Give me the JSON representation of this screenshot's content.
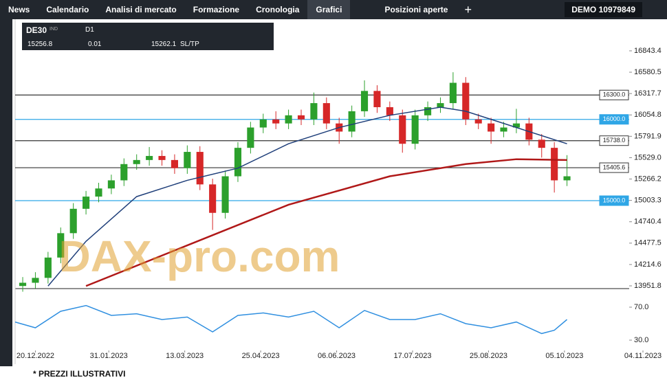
{
  "nav": {
    "items": [
      "News",
      "Calendario",
      "Analisi di mercato",
      "Formazione",
      "Cronologia",
      "Grafici",
      "Posizioni aperte"
    ],
    "account": "DEMO 10979849"
  },
  "toolbar": {
    "symbol": "DE30",
    "symbol_tag": "IND",
    "timeframe": "D1",
    "bid": "15256.8",
    "volume": "0.01",
    "ask": "15262.1",
    "sltp": "SL/TP"
  },
  "watermark": "DAX-pro.com",
  "footnote": "* PREZZI ILLUSTRATIVI",
  "chart_data": {
    "type": "candlestick",
    "x": [
      -5,
      0,
      5,
      10,
      15,
      20,
      25,
      30,
      35,
      40,
      45,
      50,
      55,
      60,
      65,
      70,
      75,
      80,
      85,
      90,
      95,
      100,
      105,
      110,
      115,
      120,
      125,
      130,
      135,
      140,
      145,
      150,
      155,
      160,
      165,
      170,
      175,
      180,
      185,
      190,
      195,
      200,
      205,
      210
    ],
    "open": [
      13950,
      13990,
      14050,
      14300,
      14600,
      14900,
      15050,
      15150,
      15250,
      15450,
      15500,
      15550,
      15500,
      15400,
      15600,
      15200,
      14850,
      15300,
      15650,
      15900,
      16000,
      15950,
      16050,
      16000,
      16200,
      15950,
      15850,
      16100,
      16350,
      16150,
      16050,
      15700,
      16050,
      16150,
      16200,
      16450,
      16000,
      15950,
      15850,
      15900,
      15950,
      15750,
      15650,
      15250
    ],
    "high": [
      14060,
      14120,
      14370,
      14670,
      14970,
      15120,
      15220,
      15320,
      15520,
      15570,
      15660,
      15620,
      15570,
      15680,
      15670,
      15270,
      15370,
      15720,
      15970,
      16070,
      16100,
      16120,
      16120,
      16330,
      16270,
      16020,
      16170,
      16480,
      16420,
      16220,
      16120,
      16120,
      16220,
      16270,
      16580,
      16520,
      16070,
      16020,
      15970,
      16130,
      16020,
      15820,
      15720,
      15560
    ],
    "low": [
      13880,
      13920,
      13980,
      14230,
      14530,
      14830,
      14980,
      15080,
      15180,
      15380,
      15430,
      15430,
      15330,
      15330,
      15130,
      14640,
      14780,
      15230,
      15580,
      15830,
      15880,
      15880,
      15930,
      15930,
      15880,
      15700,
      15780,
      16030,
      16080,
      15980,
      15590,
      15630,
      15980,
      16080,
      16130,
      15930,
      15880,
      15700,
      15780,
      15830,
      15680,
      15530,
      15100,
      15180
    ],
    "close": [
      13990,
      14050,
      14300,
      14600,
      14900,
      15050,
      15150,
      15250,
      15450,
      15500,
      15550,
      15500,
      15400,
      15600,
      15200,
      14850,
      15300,
      15650,
      15900,
      16000,
      15950,
      16050,
      16000,
      16200,
      15950,
      15850,
      16100,
      16350,
      16150,
      16050,
      15700,
      16050,
      16150,
      16200,
      16450,
      16000,
      15950,
      15850,
      15900,
      15950,
      15750,
      15650,
      15250,
      15300
    ],
    "up_color": "#2ca02c",
    "down_color": "#d62728",
    "averages": [
      {
        "color": "#1f3f7a",
        "x": [
          5,
          20,
          40,
          60,
          80,
          100,
          120,
          140,
          160,
          170,
          185,
          200,
          210
        ],
        "values": [
          13950,
          14500,
          15050,
          15250,
          15400,
          15700,
          15900,
          16050,
          16150,
          16100,
          15950,
          15800,
          15700
        ]
      },
      {
        "color": "#b01818",
        "x": [
          20,
          60,
          100,
          140,
          170,
          190,
          210
        ],
        "values": [
          13950,
          14450,
          14950,
          15300,
          15450,
          15510,
          15500
        ]
      }
    ],
    "levels": [
      {
        "value": 16300,
        "label": "16300.0",
        "color": "#333333"
      },
      {
        "value": 16000,
        "label": "16000.0",
        "color": "#2fa6e6"
      },
      {
        "value": 15738,
        "label": "15738.0",
        "color": "#333333"
      },
      {
        "value": 15405.6,
        "label": "15405.6",
        "color": "#333333"
      },
      {
        "value": 15000,
        "label": "15000.0",
        "color": "#2fa6e6"
      }
    ],
    "xlim": [
      -8,
      240
    ],
    "xticks": [
      {
        "value": 0,
        "label": "20.12.2022"
      },
      {
        "value": 29,
        "label": "31.01.2023"
      },
      {
        "value": 59,
        "label": "13.03.2023"
      },
      {
        "value": 89,
        "label": "25.04.2023"
      },
      {
        "value": 119,
        "label": "06.06.2023"
      },
      {
        "value": 149,
        "label": "17.07.2023"
      },
      {
        "value": 179,
        "label": "25.08.2023"
      },
      {
        "value": 209,
        "label": "05.10.2023"
      },
      {
        "value": 240,
        "label": "04.11.2023"
      }
    ],
    "ylim": [
      13918,
      17232
    ],
    "yticks": [
      16843.4,
      16580.5,
      16317.7,
      16054.8,
      15791.9,
      {
        "value": 15529,
        "label": "15529.0"
      },
      15266.2,
      15003.3,
      14740.4,
      14477.5,
      14214.6,
      13951.8
    ],
    "rsi": {
      "color": "#2f8fe0",
      "x": [
        -8,
        0,
        10,
        20,
        30,
        40,
        50,
        60,
        70,
        80,
        90,
        100,
        110,
        120,
        130,
        140,
        150,
        160,
        170,
        180,
        190,
        200,
        205,
        210
      ],
      "values": [
        52,
        45,
        65,
        72,
        60,
        62,
        55,
        58,
        40,
        60,
        63,
        58,
        65,
        45,
        66,
        55,
        55,
        62,
        50,
        45,
        52,
        38,
        42,
        55
      ],
      "ylim": [
        17.5,
        92.5
      ],
      "yticks": [
        {
          "value": 70,
          "label": "70.0"
        },
        {
          "value": 30,
          "label": "30.0"
        }
      ]
    }
  }
}
